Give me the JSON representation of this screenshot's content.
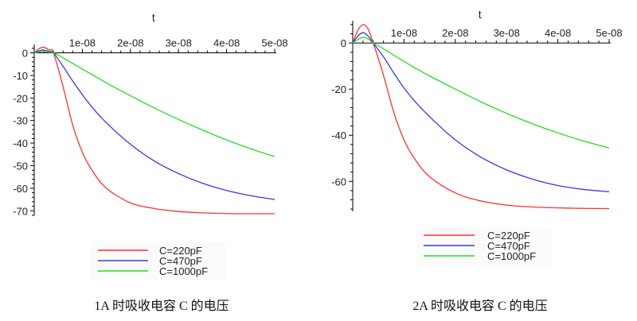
{
  "chart_data": [
    {
      "type": "line",
      "caption": "1A 时吸收电容 C 的电压",
      "xlabel": "t",
      "ylabel": "",
      "xlim": [
        0,
        5e-08
      ],
      "ylim": [
        -72,
        3
      ],
      "x_ticks": [
        {
          "value": 1e-08,
          "label": "1e-08"
        },
        {
          "value": 2e-08,
          "label": "2e-08"
        },
        {
          "value": 3e-08,
          "label": "3e-08"
        },
        {
          "value": 4e-08,
          "label": "4e-08"
        },
        {
          "value": 5e-08,
          "label": "5e-08"
        }
      ],
      "y_ticks": [
        {
          "value": 0,
          "label": "0"
        },
        {
          "value": -10,
          "label": "-10"
        },
        {
          "value": -20,
          "label": "-20"
        },
        {
          "value": -30,
          "label": "-30"
        },
        {
          "value": -40,
          "label": "-40"
        },
        {
          "value": -50,
          "label": "-50"
        },
        {
          "value": -60,
          "label": "-60"
        },
        {
          "value": -70,
          "label": "-70"
        }
      ],
      "legend_position": "bottom",
      "x": [
        0,
        1e-09,
        2e-09,
        3e-09,
        4e-09,
        6e-09,
        8e-09,
        1e-08,
        1.2e-08,
        1.5e-08,
        2e-08,
        2.5e-08,
        3e-08,
        3.5e-08,
        4e-08,
        4.5e-08,
        5e-08
      ],
      "series": [
        {
          "name": "C=220pF",
          "color": "#ff3030",
          "values": [
            0,
            1.8,
            2.5,
            1.3,
            0,
            -15,
            -32,
            -44,
            -52,
            -60,
            -66.5,
            -69,
            -70.3,
            -70.9,
            -71.2,
            -71.3,
            -71.3
          ]
        },
        {
          "name": "C=470pF",
          "color": "#3838e8",
          "values": [
            0,
            0.9,
            1.2,
            0.6,
            0,
            -6,
            -12.5,
            -18.5,
            -24,
            -31,
            -40.5,
            -48,
            -53.5,
            -57.8,
            -61,
            -63.3,
            -65
          ]
        },
        {
          "name": "C=1000pF",
          "color": "#20e020",
          "values": [
            0,
            0.4,
            0.6,
            0.3,
            0,
            -2.2,
            -4.7,
            -7.2,
            -9.6,
            -13.3,
            -19,
            -24.5,
            -29.5,
            -34.2,
            -38.6,
            -42.5,
            -46
          ]
        }
      ]
    },
    {
      "type": "line",
      "caption": "2A 时吸收电容 C 的电压",
      "xlabel": "t",
      "ylabel": "",
      "xlim": [
        0,
        5e-08
      ],
      "ylim": [
        -73,
        9
      ],
      "x_ticks": [
        {
          "value": 1e-08,
          "label": "1e-08"
        },
        {
          "value": 2e-08,
          "label": "2e-08"
        },
        {
          "value": 3e-08,
          "label": "3e-08"
        },
        {
          "value": 4e-08,
          "label": "4e-08"
        },
        {
          "value": 5e-08,
          "label": "5e-08"
        }
      ],
      "y_ticks": [
        {
          "value": 0,
          "label": "0"
        },
        {
          "value": -20,
          "label": "-20"
        },
        {
          "value": -40,
          "label": "-40"
        },
        {
          "value": -60,
          "label": "-60"
        }
      ],
      "legend_position": "bottom",
      "x": [
        0,
        1e-09,
        2e-09,
        3e-09,
        4e-09,
        6e-09,
        8e-09,
        1e-08,
        1.2e-08,
        1.5e-08,
        2e-08,
        2.5e-08,
        3e-08,
        3.5e-08,
        4e-08,
        4.5e-08,
        5e-08
      ],
      "series": [
        {
          "name": "C=220pF",
          "color": "#ff3030",
          "values": [
            0,
            5.5,
            8,
            6,
            0,
            -14,
            -30,
            -42,
            -50,
            -58,
            -65,
            -68.5,
            -70.3,
            -71.1,
            -71.5,
            -71.7,
            -71.8
          ]
        },
        {
          "name": "C=470pF",
          "color": "#3838e8",
          "values": [
            0,
            3,
            4.5,
            3,
            0,
            -6,
            -13,
            -19.5,
            -25,
            -32,
            -42,
            -49.5,
            -55,
            -59,
            -61.8,
            -63.5,
            -64.5
          ]
        },
        {
          "name": "C=1000pF",
          "color": "#20e020",
          "values": [
            0,
            1.5,
            2.5,
            1.8,
            0,
            -2.5,
            -5.3,
            -8,
            -10.6,
            -14.3,
            -20,
            -25.5,
            -30.5,
            -35,
            -39,
            -42.5,
            -45.5
          ]
        }
      ]
    }
  ]
}
